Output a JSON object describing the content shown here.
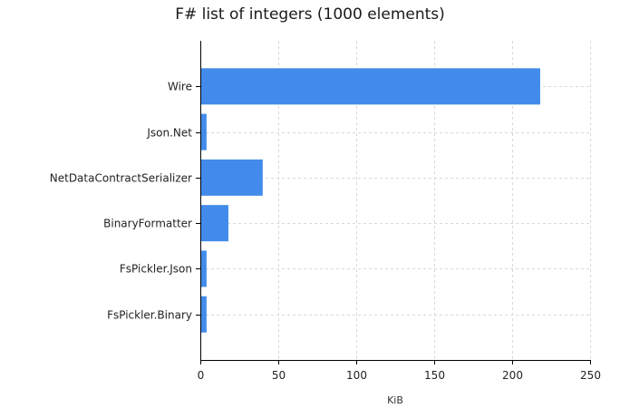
{
  "chart_data": {
    "type": "bar",
    "orientation": "horizontal",
    "title": "F# list of integers (1000 elements)",
    "xlabel": "KiB",
    "ylabel": "",
    "categories": [
      "Wire",
      "Json.Net",
      "NetDataContractSerializer",
      "BinaryFormatter",
      "FsPickler.Json",
      "FsPickler.Binary"
    ],
    "values": [
      218,
      4,
      40,
      18,
      4,
      4
    ],
    "xlim": [
      0,
      250
    ],
    "xticks": [
      0,
      50,
      100,
      150,
      200,
      250
    ],
    "grid": true,
    "legend": "none",
    "bar_color": "#428bea",
    "grid_color": "#d9d9d9"
  }
}
